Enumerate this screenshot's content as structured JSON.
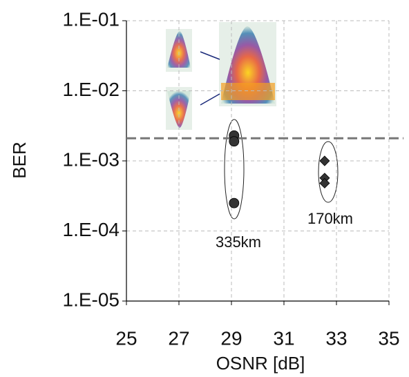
{
  "chart_data": {
    "type": "scatter",
    "log_y": true,
    "grid": true,
    "x_label": "OSNR [dB]",
    "y_label": "BER",
    "xlim": [
      25,
      35
    ],
    "xticks": [
      25,
      27,
      29,
      31,
      33,
      35
    ],
    "ylim": [
      1e-05,
      0.1
    ],
    "yticks": [
      {
        "value": 0.1,
        "label": "1.E-01"
      },
      {
        "value": 0.01,
        "label": "1.E-02"
      },
      {
        "value": 0.001,
        "label": "1.E-03"
      },
      {
        "value": 0.0001,
        "label": "1.E-04"
      },
      {
        "value": 1e-05,
        "label": "1.E-05"
      }
    ],
    "threshold": 0.0021,
    "series": [
      {
        "name": "335km",
        "marker": "circle",
        "color": "#333333",
        "x": [
          29.1,
          29.1,
          29.1
        ],
        "values": [
          0.0023,
          0.0019,
          0.00025
        ]
      },
      {
        "name": "170km",
        "marker": "diamond",
        "color": "#333333",
        "x": [
          32.55,
          32.55,
          32.55
        ],
        "values": [
          0.001,
          0.00057,
          0.00048
        ]
      }
    ]
  }
}
